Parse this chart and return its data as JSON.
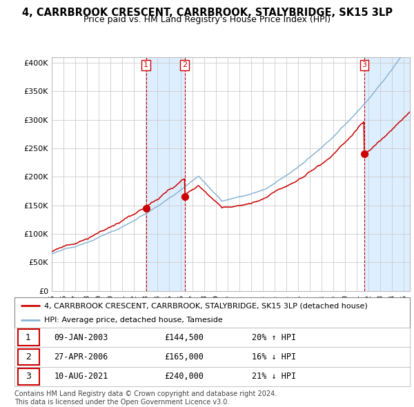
{
  "title": "4, CARRBROOK CRESCENT, CARRBROOK, STALYBRIDGE, SK15 3LP",
  "subtitle": "Price paid vs. HM Land Registry's House Price Index (HPI)",
  "title_fontsize": 10.5,
  "subtitle_fontsize": 9,
  "ylim": [
    0,
    410000
  ],
  "yticks": [
    0,
    50000,
    100000,
    150000,
    200000,
    250000,
    300000,
    350000,
    400000
  ],
  "ytick_labels": [
    "£0",
    "£50K",
    "£100K",
    "£150K",
    "£200K",
    "£250K",
    "£300K",
    "£350K",
    "£400K"
  ],
  "hpi_color": "#8ab4d4",
  "price_color": "#cc0000",
  "shade_color": "#ddeeff",
  "background_color": "#ffffff",
  "grid_color": "#cccccc",
  "transactions": [
    {
      "num": 1,
      "date": "09-JAN-2003",
      "price": 144500,
      "pct": "20%",
      "dir": "↑",
      "year": 2003.03
    },
    {
      "num": 2,
      "date": "27-APR-2006",
      "price": 165000,
      "pct": "16%",
      "dir": "↓",
      "year": 2006.32
    },
    {
      "num": 3,
      "date": "10-AUG-2021",
      "price": 240000,
      "pct": "21%",
      "dir": "↓",
      "year": 2021.61
    }
  ],
  "legend_entries": [
    "4, CARRBROOK CRESCENT, CARRBROOK, STALYBRIDGE, SK15 3LP (detached house)",
    "HPI: Average price, detached house, Tameside"
  ],
  "footnote": "Contains HM Land Registry data © Crown copyright and database right 2024.\nThis data is licensed under the Open Government Licence v3.0.",
  "xlim_start": 1995.0,
  "xlim_end": 2025.5
}
